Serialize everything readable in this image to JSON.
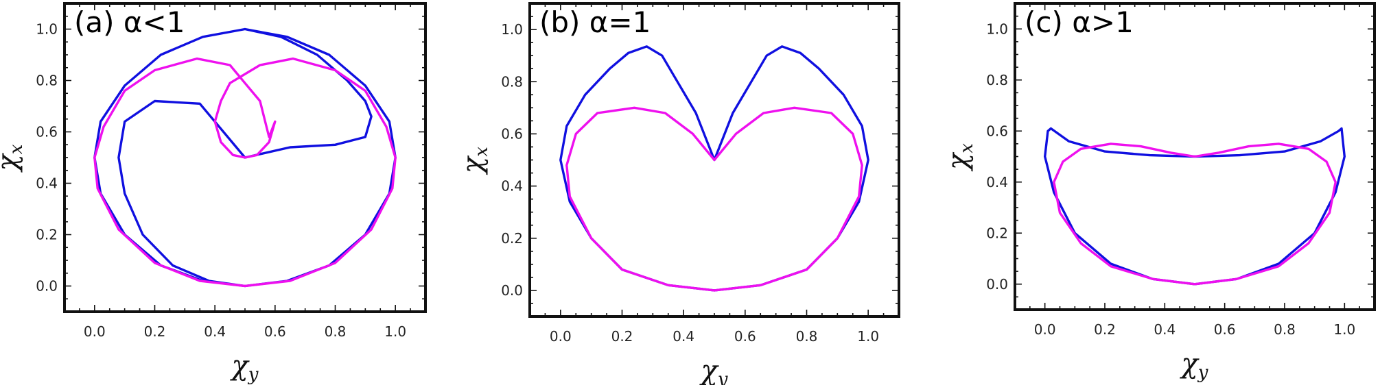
{
  "chart_data": [
    {
      "type": "line",
      "title": "(a) α<1",
      "xlabel": "χy",
      "ylabel": "χx",
      "xlim": [
        -0.1,
        1.1
      ],
      "ylim": [
        -0.1,
        1.1
      ],
      "xticks": [
        "0.0",
        "0.2",
        "0.4",
        "0.6",
        "0.8",
        "1.0"
      ],
      "yticks": [
        "0.0",
        "0.2",
        "0.4",
        "0.6",
        "0.8",
        "1.0"
      ],
      "grid": false,
      "series": [
        {
          "color": "#1010e0",
          "x": [
            0.5,
            0.36,
            0.22,
            0.1,
            0.02,
            0.0,
            0.02,
            0.1,
            0.22,
            0.36,
            0.5,
            0.64,
            0.78,
            0.9,
            0.98,
            1.0,
            0.98,
            0.9,
            0.78,
            0.64,
            0.5,
            0.38,
            0.26,
            0.16,
            0.1,
            0.08,
            0.1,
            0.2,
            0.35,
            0.5,
            0.65,
            0.8,
            0.9,
            0.92,
            0.9,
            0.84,
            0.74,
            0.62,
            0.5
          ],
          "y": [
            0.0,
            0.02,
            0.08,
            0.2,
            0.36,
            0.5,
            0.64,
            0.78,
            0.9,
            0.97,
            1.0,
            0.97,
            0.9,
            0.78,
            0.64,
            0.5,
            0.36,
            0.2,
            0.08,
            0.02,
            0.0,
            0.02,
            0.08,
            0.2,
            0.36,
            0.5,
            0.64,
            0.72,
            0.71,
            0.5,
            0.54,
            0.55,
            0.58,
            0.66,
            0.72,
            0.8,
            0.9,
            0.97,
            1.0
          ]
        },
        {
          "color": "#ee10ee",
          "x": [
            0.5,
            0.35,
            0.2,
            0.08,
            0.01,
            0.0,
            0.03,
            0.1,
            0.2,
            0.34,
            0.45,
            0.5,
            0.55,
            0.58,
            0.6,
            0.58,
            0.54,
            0.5,
            0.46,
            0.42,
            0.4,
            0.42,
            0.45,
            0.55,
            0.66,
            0.8,
            0.9,
            0.97,
            1.0,
            0.99,
            0.92,
            0.8,
            0.65,
            0.5
          ],
          "y": [
            0.0,
            0.02,
            0.09,
            0.22,
            0.38,
            0.5,
            0.62,
            0.76,
            0.84,
            0.885,
            0.86,
            0.79,
            0.72,
            0.58,
            0.64,
            0.56,
            0.51,
            0.5,
            0.51,
            0.56,
            0.64,
            0.72,
            0.79,
            0.86,
            0.885,
            0.84,
            0.76,
            0.62,
            0.5,
            0.38,
            0.22,
            0.09,
            0.02,
            0.0
          ]
        }
      ]
    },
    {
      "type": "line",
      "title": "(b) α=1",
      "xlabel": "χy",
      "ylabel": "χx",
      "xlim": [
        -0.1,
        1.1
      ],
      "ylim": [
        -0.1,
        1.1
      ],
      "xticks": [
        "0.0",
        "0.2",
        "0.4",
        "0.6",
        "0.8",
        "1.0"
      ],
      "yticks": [
        "0.0",
        "0.2",
        "0.4",
        "0.6",
        "0.8",
        "1.0"
      ],
      "grid": false,
      "series": [
        {
          "color": "#1010e0",
          "x": [
            0.5,
            0.35,
            0.2,
            0.1,
            0.03,
            0.0,
            0.02,
            0.08,
            0.16,
            0.22,
            0.28,
            0.33,
            0.38,
            0.44,
            0.5,
            0.56,
            0.62,
            0.67,
            0.72,
            0.78,
            0.84,
            0.92,
            0.98,
            1.0,
            0.97,
            0.9,
            0.8,
            0.65,
            0.5
          ],
          "y": [
            0.0,
            0.02,
            0.08,
            0.2,
            0.34,
            0.5,
            0.63,
            0.75,
            0.85,
            0.91,
            0.935,
            0.9,
            0.8,
            0.68,
            0.5,
            0.68,
            0.8,
            0.9,
            0.935,
            0.91,
            0.85,
            0.75,
            0.63,
            0.5,
            0.34,
            0.2,
            0.08,
            0.02,
            0.0
          ]
        },
        {
          "color": "#ee10ee",
          "x": [
            0.5,
            0.35,
            0.2,
            0.1,
            0.03,
            0.02,
            0.05,
            0.12,
            0.24,
            0.34,
            0.43,
            0.5,
            0.57,
            0.66,
            0.76,
            0.88,
            0.95,
            0.98,
            0.97,
            0.9,
            0.8,
            0.65,
            0.5
          ],
          "y": [
            0.0,
            0.02,
            0.08,
            0.2,
            0.36,
            0.48,
            0.6,
            0.68,
            0.7,
            0.68,
            0.6,
            0.5,
            0.6,
            0.68,
            0.7,
            0.68,
            0.6,
            0.48,
            0.36,
            0.2,
            0.08,
            0.02,
            0.0
          ]
        }
      ]
    },
    {
      "type": "line",
      "title": "(c) α>1",
      "xlabel": "χy",
      "ylabel": "χx",
      "xlim": [
        -0.1,
        1.1
      ],
      "ylim": [
        -0.1,
        1.1
      ],
      "xticks": [
        "0.0",
        "0.2",
        "0.4",
        "0.6",
        "0.8",
        "1.0"
      ],
      "yticks": [
        "0.0",
        "0.2",
        "0.4",
        "0.6",
        "0.8",
        "1.0"
      ],
      "grid": false,
      "series": [
        {
          "color": "#1010e0",
          "x": [
            0.5,
            0.36,
            0.22,
            0.1,
            0.03,
            0.0,
            0.01,
            0.02,
            0.08,
            0.2,
            0.35,
            0.5,
            0.65,
            0.8,
            0.92,
            0.98,
            0.99,
            1.0,
            0.97,
            0.9,
            0.78,
            0.64,
            0.5
          ],
          "y": [
            0.0,
            0.02,
            0.08,
            0.2,
            0.36,
            0.5,
            0.6,
            0.61,
            0.56,
            0.52,
            0.505,
            0.5,
            0.505,
            0.52,
            0.56,
            0.6,
            0.61,
            0.5,
            0.36,
            0.2,
            0.08,
            0.02,
            0.0
          ]
        },
        {
          "color": "#ee10ee",
          "x": [
            0.5,
            0.36,
            0.22,
            0.12,
            0.05,
            0.03,
            0.06,
            0.12,
            0.22,
            0.32,
            0.42,
            0.5,
            0.58,
            0.68,
            0.78,
            0.88,
            0.94,
            0.97,
            0.95,
            0.88,
            0.78,
            0.64,
            0.5
          ],
          "y": [
            0.0,
            0.02,
            0.07,
            0.16,
            0.28,
            0.4,
            0.48,
            0.53,
            0.55,
            0.54,
            0.515,
            0.5,
            0.515,
            0.54,
            0.55,
            0.53,
            0.48,
            0.4,
            0.28,
            0.16,
            0.07,
            0.02,
            0.0
          ]
        }
      ]
    }
  ]
}
